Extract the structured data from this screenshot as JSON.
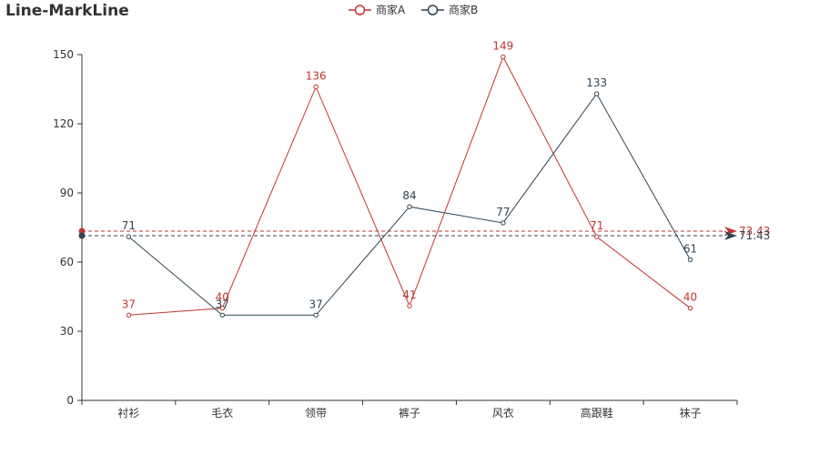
{
  "chart_data": {
    "type": "line",
    "title": "Line-MarkLine",
    "categories": [
      "衬衫",
      "毛衣",
      "领带",
      "裤子",
      "风衣",
      "高跟鞋",
      "袜子"
    ],
    "ylim": [
      0,
      150
    ],
    "yticks": [
      0,
      30,
      60,
      90,
      120,
      150
    ],
    "legend_position": "top-center",
    "grid": false,
    "series": [
      {
        "name": "商家A",
        "color": "#c23531",
        "values": [
          37,
          40,
          136,
          41,
          149,
          71,
          40
        ],
        "markline_average": 73.43,
        "markline_label": "73.43"
      },
      {
        "name": "商家B",
        "color": "#2f4554",
        "values": [
          71,
          37,
          37,
          84,
          77,
          133,
          61
        ],
        "markline_average": 71.43,
        "markline_label": "71.43"
      }
    ]
  }
}
